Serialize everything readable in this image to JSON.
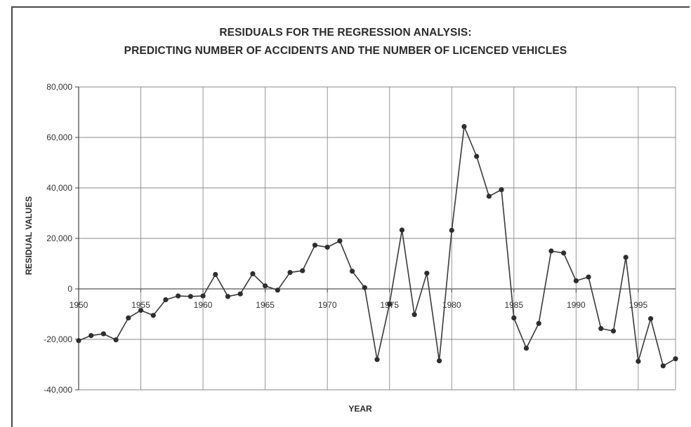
{
  "chart_data": {
    "type": "line",
    "title": "RESIDUALS FOR THE REGRESSION ANALYSIS:",
    "subtitle": "PREDICTING NUMBER OF ACCIDENTS AND THE NUMBER OF LICENCED VEHICLES",
    "xlabel": "YEAR",
    "ylabel": "RESIDUAL VALUES",
    "xlim": [
      1950,
      1998
    ],
    "ylim": [
      -40000,
      80000
    ],
    "grid": true,
    "x_ticks": [
      "1950",
      "1955",
      "1960",
      "1965",
      "1970",
      "1975",
      "1980",
      "1985",
      "1990",
      "1995"
    ],
    "y_ticks": [
      "80,000",
      "60,000",
      "40,000",
      "20,000",
      "0",
      "-20,000",
      "-40,000"
    ],
    "line_color": "#3a3a3a",
    "series": [
      {
        "x": [
          1950,
          1951,
          1952,
          1953,
          1954,
          1955,
          1956,
          1957,
          1958,
          1959,
          1960,
          1961,
          1962,
          1963,
          1964,
          1965,
          1966,
          1967,
          1968,
          1969,
          1970,
          1971,
          1972,
          1973,
          1974,
          1975,
          1976,
          1977,
          1978,
          1979,
          1980,
          1981,
          1982,
          1983,
          1984,
          1985,
          1986,
          1987,
          1988,
          1989,
          1990,
          1991,
          1992,
          1993,
          1994,
          1995,
          1996,
          1997,
          1998
        ],
        "values": [
          -20500,
          -18500,
          -17800,
          -20200,
          -11500,
          -8500,
          -10500,
          -4300,
          -2800,
          -3000,
          -2800,
          5700,
          -3000,
          -2000,
          6000,
          1200,
          -500,
          6500,
          7200,
          17300,
          16500,
          19000,
          7000,
          500,
          -28000,
          -6000,
          23300,
          -10200,
          6200,
          -28500,
          23200,
          64300,
          52500,
          36700,
          39300,
          -11500,
          -23500,
          -13700,
          15000,
          14200,
          3200,
          4700,
          -15700,
          -16700,
          12500,
          -28700,
          -11800,
          -30500,
          -27700
        ]
      }
    ]
  }
}
